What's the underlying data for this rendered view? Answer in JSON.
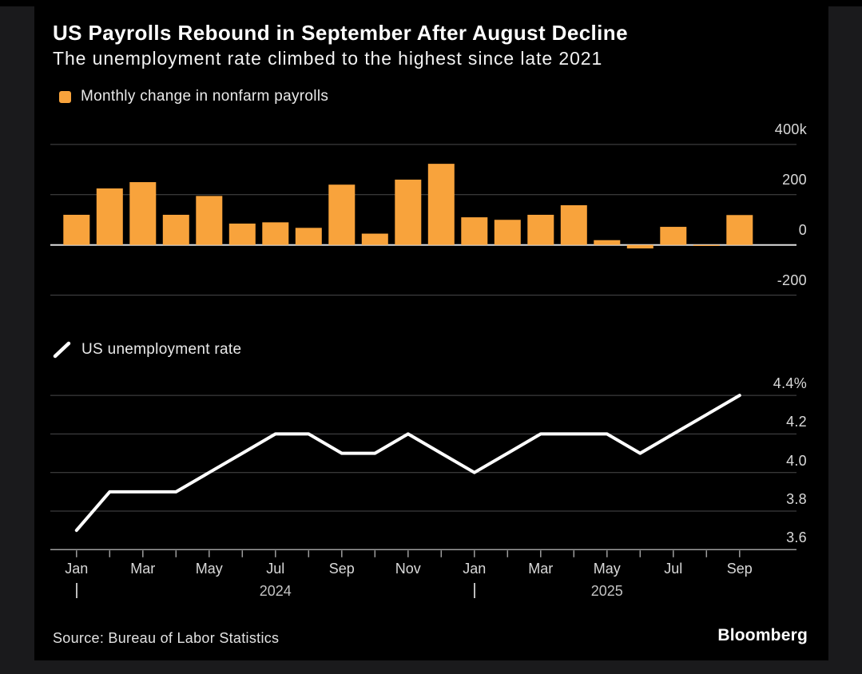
{
  "page": {
    "title": "US Payrolls Rebound in September After August Decline",
    "subtitle": "The unemployment rate climbed to the highest since late 2021",
    "source": "Source: Bureau of Labor Statistics",
    "brand": "Bloomberg"
  },
  "colors": {
    "background": "#1a1a1c",
    "card": "#000000",
    "bar": "#f8a33c",
    "line": "#ffffff",
    "grid": "#4a4a4b",
    "zero_line": "#dedede",
    "axis": "#9e9e9e",
    "tick_label": "#d9d9d9"
  },
  "chart_data": [
    {
      "type": "bar",
      "legend": "Monthly change in nonfarm payrolls",
      "categories": [
        "Jan 2024",
        "Feb 2024",
        "Mar 2024",
        "Apr 2024",
        "May 2024",
        "Jun 2024",
        "Jul 2024",
        "Aug 2024",
        "Sep 2024",
        "Oct 2024",
        "Nov 2024",
        "Dec 2024",
        "Jan 2025",
        "Feb 2025",
        "Mar 2025",
        "Apr 2025",
        "May 2025",
        "Jun 2025",
        "Jul 2025",
        "Aug 2025",
        "Sep 2025"
      ],
      "values": [
        120,
        225,
        250,
        120,
        195,
        85,
        90,
        68,
        240,
        45,
        260,
        323,
        110,
        100,
        120,
        158,
        19,
        -14,
        72,
        -4,
        119
      ],
      "ytick_labels": [
        "400k",
        "200",
        "0",
        "-200"
      ],
      "ytick_values": [
        400,
        200,
        0,
        -200
      ],
      "ylim": [
        -270,
        450
      ],
      "grid": true,
      "legend_position": "top-left"
    },
    {
      "type": "line",
      "legend": "US unemployment rate",
      "categories": [
        "Jan 2024",
        "Feb 2024",
        "Mar 2024",
        "Apr 2024",
        "May 2024",
        "Jun 2024",
        "Jul 2024",
        "Aug 2024",
        "Sep 2024",
        "Oct 2024",
        "Nov 2024",
        "Dec 2024",
        "Jan 2025",
        "Feb 2025",
        "Mar 2025",
        "Apr 2025",
        "May 2025",
        "Jun 2025",
        "Jul 2025",
        "Aug 2025",
        "Sep 2025"
      ],
      "values": [
        3.7,
        3.9,
        3.9,
        3.9,
        4.0,
        4.1,
        4.2,
        4.2,
        4.1,
        4.1,
        4.2,
        4.1,
        4.0,
        4.1,
        4.2,
        4.2,
        4.2,
        4.1,
        4.2,
        4.3,
        4.4
      ],
      "ytick_labels": [
        "4.4%",
        "4.2",
        "4.0",
        "3.8",
        "3.6"
      ],
      "ytick_values": [
        4.4,
        4.2,
        4.0,
        3.8,
        3.6
      ],
      "ylim": [
        3.45,
        4.55
      ],
      "grid": true,
      "legend_position": "top-left"
    }
  ],
  "x_axis": {
    "tick_labels": [
      "Jan",
      "Mar",
      "May",
      "Jul",
      "Sep",
      "Nov",
      "Jan",
      "Mar",
      "May",
      "Jul",
      "Sep"
    ],
    "year_labels": [
      "2024",
      "2025"
    ]
  }
}
